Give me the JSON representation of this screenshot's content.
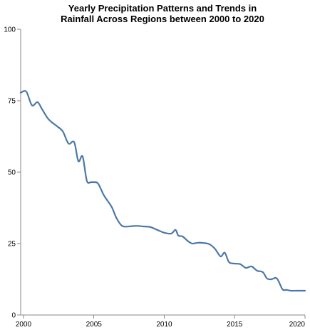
{
  "chart_data": {
    "type": "line",
    "title": [
      "Yearly Precipitation Patterns and Trends in",
      "Rainfall Across Regions between 2000 to 2020"
    ],
    "xlabel": "",
    "ylabel": "",
    "xlim": [
      1999.8,
      2020.0
    ],
    "ylim": [
      0,
      100
    ],
    "x_ticks": [
      2000,
      2005,
      2010,
      2015,
      2020
    ],
    "y_ticks": [
      0,
      25,
      50,
      75,
      100
    ],
    "grid": false,
    "legend": "none",
    "line_color": "#4c78a8",
    "series": [
      {
        "x": [
          1999.8,
          2000.2,
          2000.6,
          2001.0,
          2001.3,
          2001.7,
          2002.0,
          2002.4,
          2002.8,
          2003.2,
          2003.6,
          2003.9,
          2004.2,
          2004.5,
          2004.8,
          2005.0,
          2005.3,
          2005.7,
          2006.0,
          2006.3,
          2006.6,
          2007.0,
          2007.5,
          2008.0,
          2008.5,
          2009.0,
          2009.5,
          2010.0,
          2010.5,
          2010.8,
          2011.0,
          2011.3,
          2011.7,
          2012.0,
          2012.4,
          2012.8,
          2013.2,
          2013.6,
          2014.0,
          2014.3,
          2014.6,
          2015.0,
          2015.4,
          2015.8,
          2016.2,
          2016.6,
          2017.0,
          2017.3,
          2017.6,
          2018.0,
          2018.4,
          2018.7,
          2019.0,
          2019.4,
          2019.8,
          2020.0
        ],
        "values": [
          77.8,
          78.2,
          73.4,
          74.5,
          72.2,
          69.0,
          67.5,
          66.0,
          64.2,
          60.0,
          60.5,
          53.8,
          55.5,
          47.0,
          46.5,
          46.5,
          46.0,
          42.0,
          39.8,
          37.5,
          34.0,
          31.2,
          31.0,
          31.2,
          31.0,
          30.8,
          29.8,
          28.8,
          28.5,
          29.8,
          27.8,
          27.5,
          25.8,
          25.0,
          25.3,
          25.2,
          24.8,
          23.2,
          20.5,
          21.8,
          18.5,
          18.0,
          17.8,
          16.5,
          17.0,
          15.5,
          15.0,
          12.8,
          12.5,
          12.8,
          9.0,
          8.8,
          8.5,
          8.5,
          8.5,
          8.5
        ]
      }
    ]
  }
}
